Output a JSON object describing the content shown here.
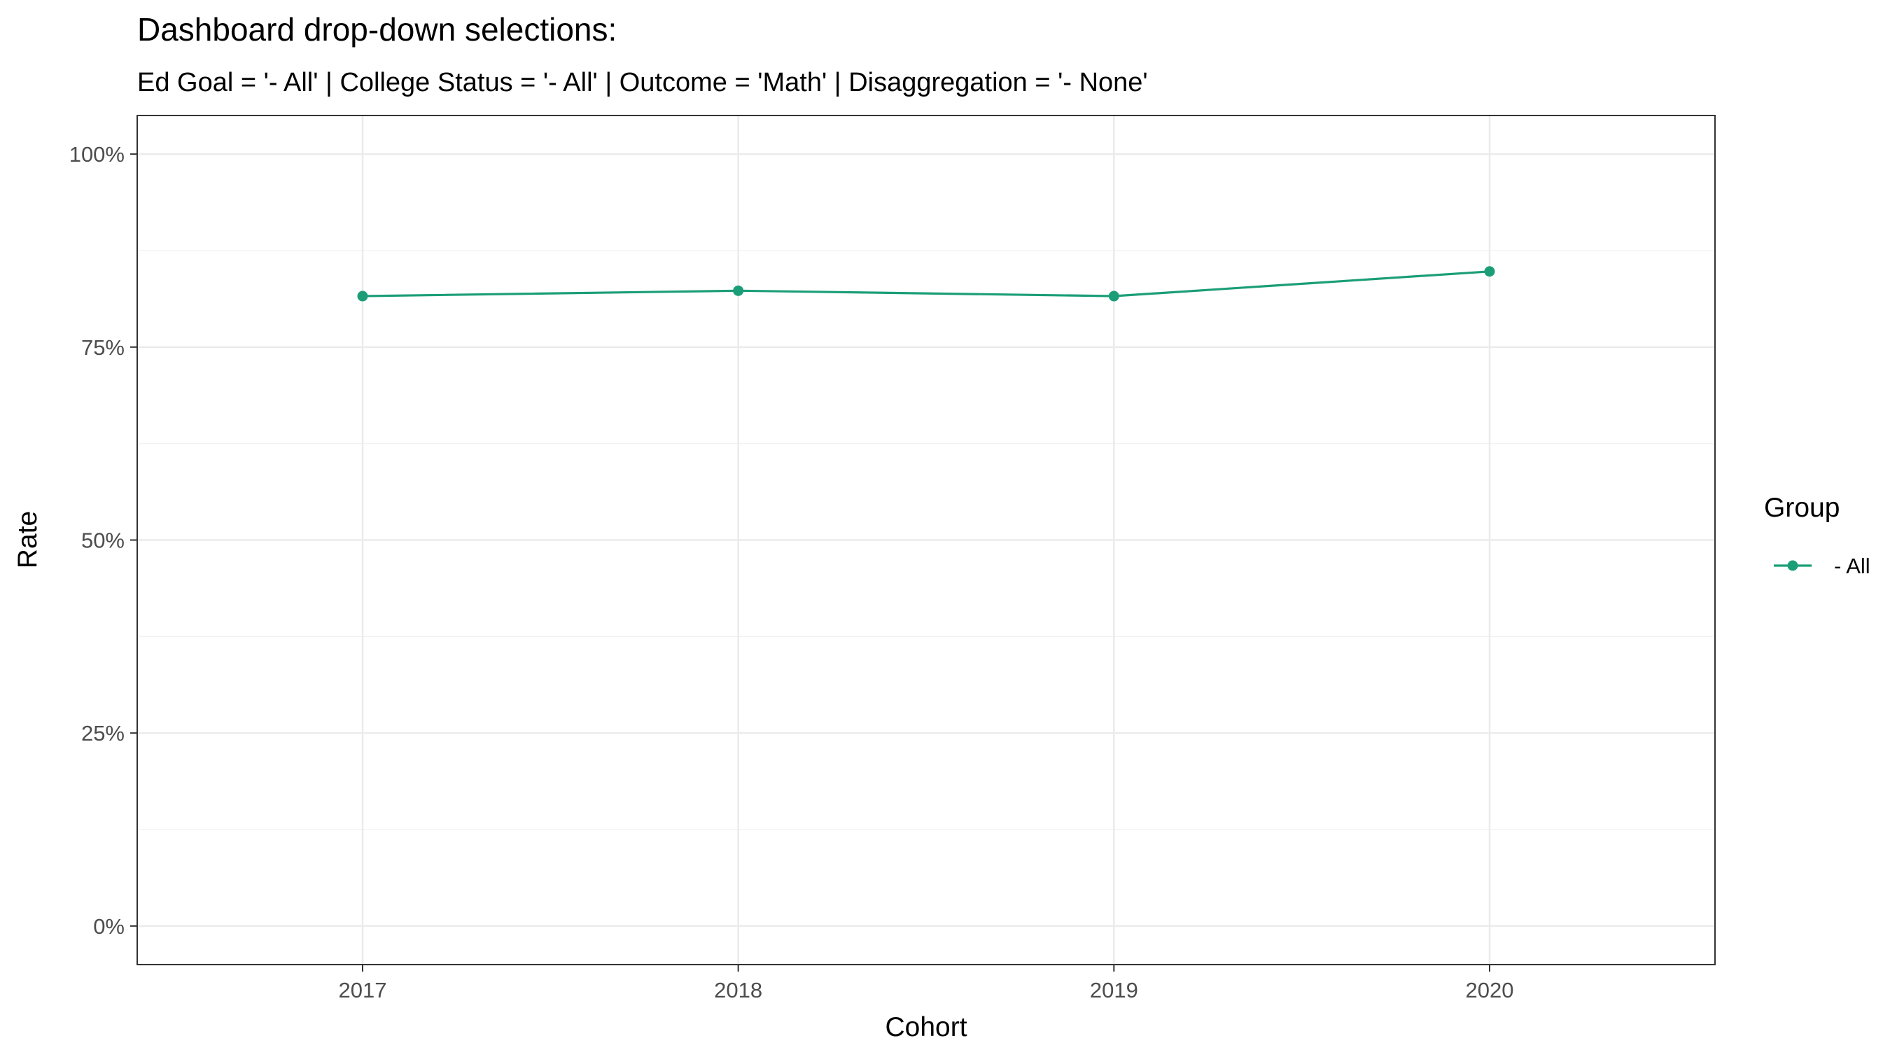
{
  "chart_data": {
    "type": "line",
    "title": "Dashboard drop-down selections:",
    "subtitle": "Ed Goal = '- All' | College Status = '- All' | Outcome = 'Math' | Disaggregation = '- None'",
    "xlabel": "Cohort",
    "ylabel": "Rate",
    "categories": [
      "2017",
      "2018",
      "2019",
      "2020"
    ],
    "y_ticks": [
      {
        "value": 0,
        "label": "0%"
      },
      {
        "value": 0.25,
        "label": "25%"
      },
      {
        "value": 0.5,
        "label": "50%"
      },
      {
        "value": 0.75,
        "label": "75%"
      },
      {
        "value": 1,
        "label": "100%"
      }
    ],
    "ylim": [
      -0.05,
      1.05
    ],
    "grid": true,
    "legend": {
      "title": "Group",
      "position": "right"
    },
    "series": [
      {
        "name": "- All",
        "color": "#1b9e77",
        "values": [
          0.816,
          0.823,
          0.816,
          0.848
        ]
      }
    ]
  }
}
